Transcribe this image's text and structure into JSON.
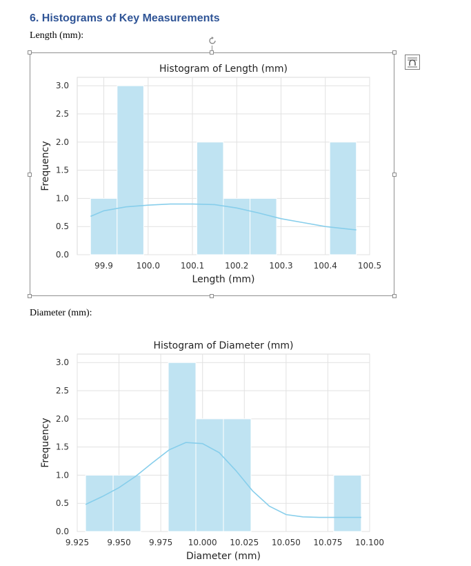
{
  "section_heading": "6. Histograms of Key Measurements",
  "length_label": "Length (mm):",
  "diameter_label": "Diameter (mm):",
  "icons": {
    "rotate_handle": "rotate-icon",
    "layout_options": "layout-options-icon"
  },
  "chart_data": [
    {
      "type": "bar",
      "title": "Histogram of Length (mm)",
      "xlabel": "Length (mm)",
      "ylabel": "Frequency",
      "xlim": [
        99.84,
        100.5
      ],
      "ylim": [
        0,
        3.15
      ],
      "xticks": [
        "99.9",
        "100.0",
        "100.1",
        "100.2",
        "100.3",
        "100.4",
        "100.5"
      ],
      "yticks": [
        "0.0",
        "0.5",
        "1.0",
        "1.5",
        "2.0",
        "2.5",
        "3.0"
      ],
      "bins": [
        {
          "x0": 99.87,
          "x1": 99.93,
          "count": 1
        },
        {
          "x0": 99.93,
          "x1": 99.99,
          "count": 3
        },
        {
          "x0": 99.99,
          "x1": 100.05,
          "count": 0
        },
        {
          "x0": 100.05,
          "x1": 100.11,
          "count": 0
        },
        {
          "x0": 100.11,
          "x1": 100.17,
          "count": 2
        },
        {
          "x0": 100.17,
          "x1": 100.23,
          "count": 1
        },
        {
          "x0": 100.23,
          "x1": 100.29,
          "count": 1
        },
        {
          "x0": 100.29,
          "x1": 100.35,
          "count": 0
        },
        {
          "x0": 100.35,
          "x1": 100.41,
          "count": 0
        },
        {
          "x0": 100.41,
          "x1": 100.47,
          "count": 2
        }
      ],
      "kde": {
        "x": [
          99.87,
          99.9,
          99.95,
          100.0,
          100.05,
          100.1,
          100.15,
          100.2,
          100.25,
          100.3,
          100.35,
          100.4,
          100.47
        ],
        "y": [
          0.68,
          0.78,
          0.85,
          0.88,
          0.9,
          0.9,
          0.89,
          0.83,
          0.74,
          0.64,
          0.57,
          0.5,
          0.44
        ]
      },
      "grid": true,
      "bar_color": "#bfe3f2",
      "kde_color": "#87ceeb"
    },
    {
      "type": "bar",
      "title": "Histogram of Diameter (mm)",
      "xlabel": "Diameter (mm)",
      "ylabel": "Frequency",
      "xlim": [
        9.925,
        10.1
      ],
      "ylim": [
        0,
        3.15
      ],
      "xticks": [
        "9.925",
        "9.950",
        "9.975",
        "10.000",
        "10.025",
        "10.050",
        "10.075",
        "10.100"
      ],
      "yticks": [
        "0.0",
        "0.5",
        "1.0",
        "1.5",
        "2.0",
        "2.5",
        "3.0"
      ],
      "bins": [
        {
          "x0": 9.93,
          "x1": 9.9465,
          "count": 1
        },
        {
          "x0": 9.9465,
          "x1": 9.963,
          "count": 1
        },
        {
          "x0": 9.963,
          "x1": 9.9795,
          "count": 0
        },
        {
          "x0": 9.9795,
          "x1": 9.996,
          "count": 3
        },
        {
          "x0": 9.996,
          "x1": 10.0125,
          "count": 2
        },
        {
          "x0": 10.0125,
          "x1": 10.029,
          "count": 2
        },
        {
          "x0": 10.029,
          "x1": 10.0455,
          "count": 0
        },
        {
          "x0": 10.0455,
          "x1": 10.062,
          "count": 0
        },
        {
          "x0": 10.062,
          "x1": 10.0785,
          "count": 0
        },
        {
          "x0": 10.0785,
          "x1": 10.095,
          "count": 1
        }
      ],
      "kde": {
        "x": [
          9.93,
          9.94,
          9.95,
          9.96,
          9.97,
          9.98,
          9.99,
          10.0,
          10.01,
          10.02,
          10.03,
          10.04,
          10.05,
          10.06,
          10.07,
          10.08,
          10.095
        ],
        "y": [
          0.48,
          0.62,
          0.78,
          0.98,
          1.22,
          1.45,
          1.58,
          1.56,
          1.4,
          1.08,
          0.72,
          0.45,
          0.3,
          0.26,
          0.25,
          0.25,
          0.25
        ]
      },
      "grid": true,
      "bar_color": "#bfe3f2",
      "kde_color": "#87ceeb"
    }
  ]
}
